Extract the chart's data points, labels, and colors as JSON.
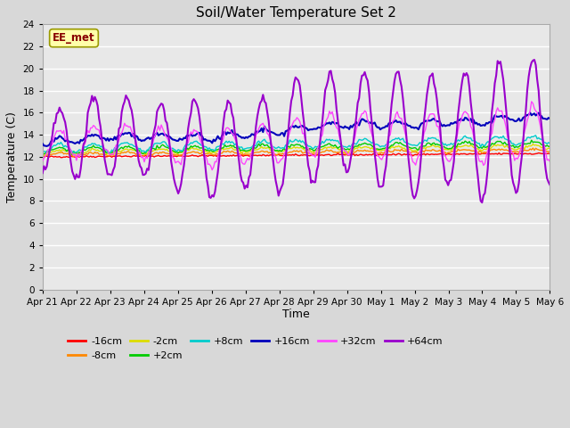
{
  "title": "Soil/Water Temperature Set 2",
  "xlabel": "Time",
  "ylabel": "Temperature (C)",
  "ylim": [
    0,
    24
  ],
  "yticks": [
    0,
    2,
    4,
    6,
    8,
    10,
    12,
    14,
    16,
    18,
    20,
    22,
    24
  ],
  "x_labels": [
    "Apr 21",
    "Apr 22",
    "Apr 23",
    "Apr 24",
    "Apr 25",
    "Apr 26",
    "Apr 27",
    "Apr 28",
    "Apr 29",
    "Apr 30",
    "May 1",
    "May 2",
    "May 3",
    "May 4",
    "May 5",
    "May 6"
  ],
  "series": {
    "-16cm": {
      "color": "#ff0000"
    },
    "-8cm": {
      "color": "#ff8800"
    },
    "-2cm": {
      "color": "#dddd00"
    },
    "+2cm": {
      "color": "#00cc00"
    },
    "+8cm": {
      "color": "#00cccc"
    },
    "+16cm": {
      "color": "#0000bb"
    },
    "+32cm": {
      "color": "#ff44ff"
    },
    "+64cm": {
      "color": "#9900cc"
    }
  },
  "bg_color": "#e8e8e8",
  "plot_bg": "#e0e0e0",
  "grid_color": "#ffffff",
  "watermark_text": "EE_met",
  "watermark_bg": "#ffffaa",
  "watermark_color": "#880000",
  "figsize": [
    6.4,
    4.8
  ],
  "dpi": 100
}
